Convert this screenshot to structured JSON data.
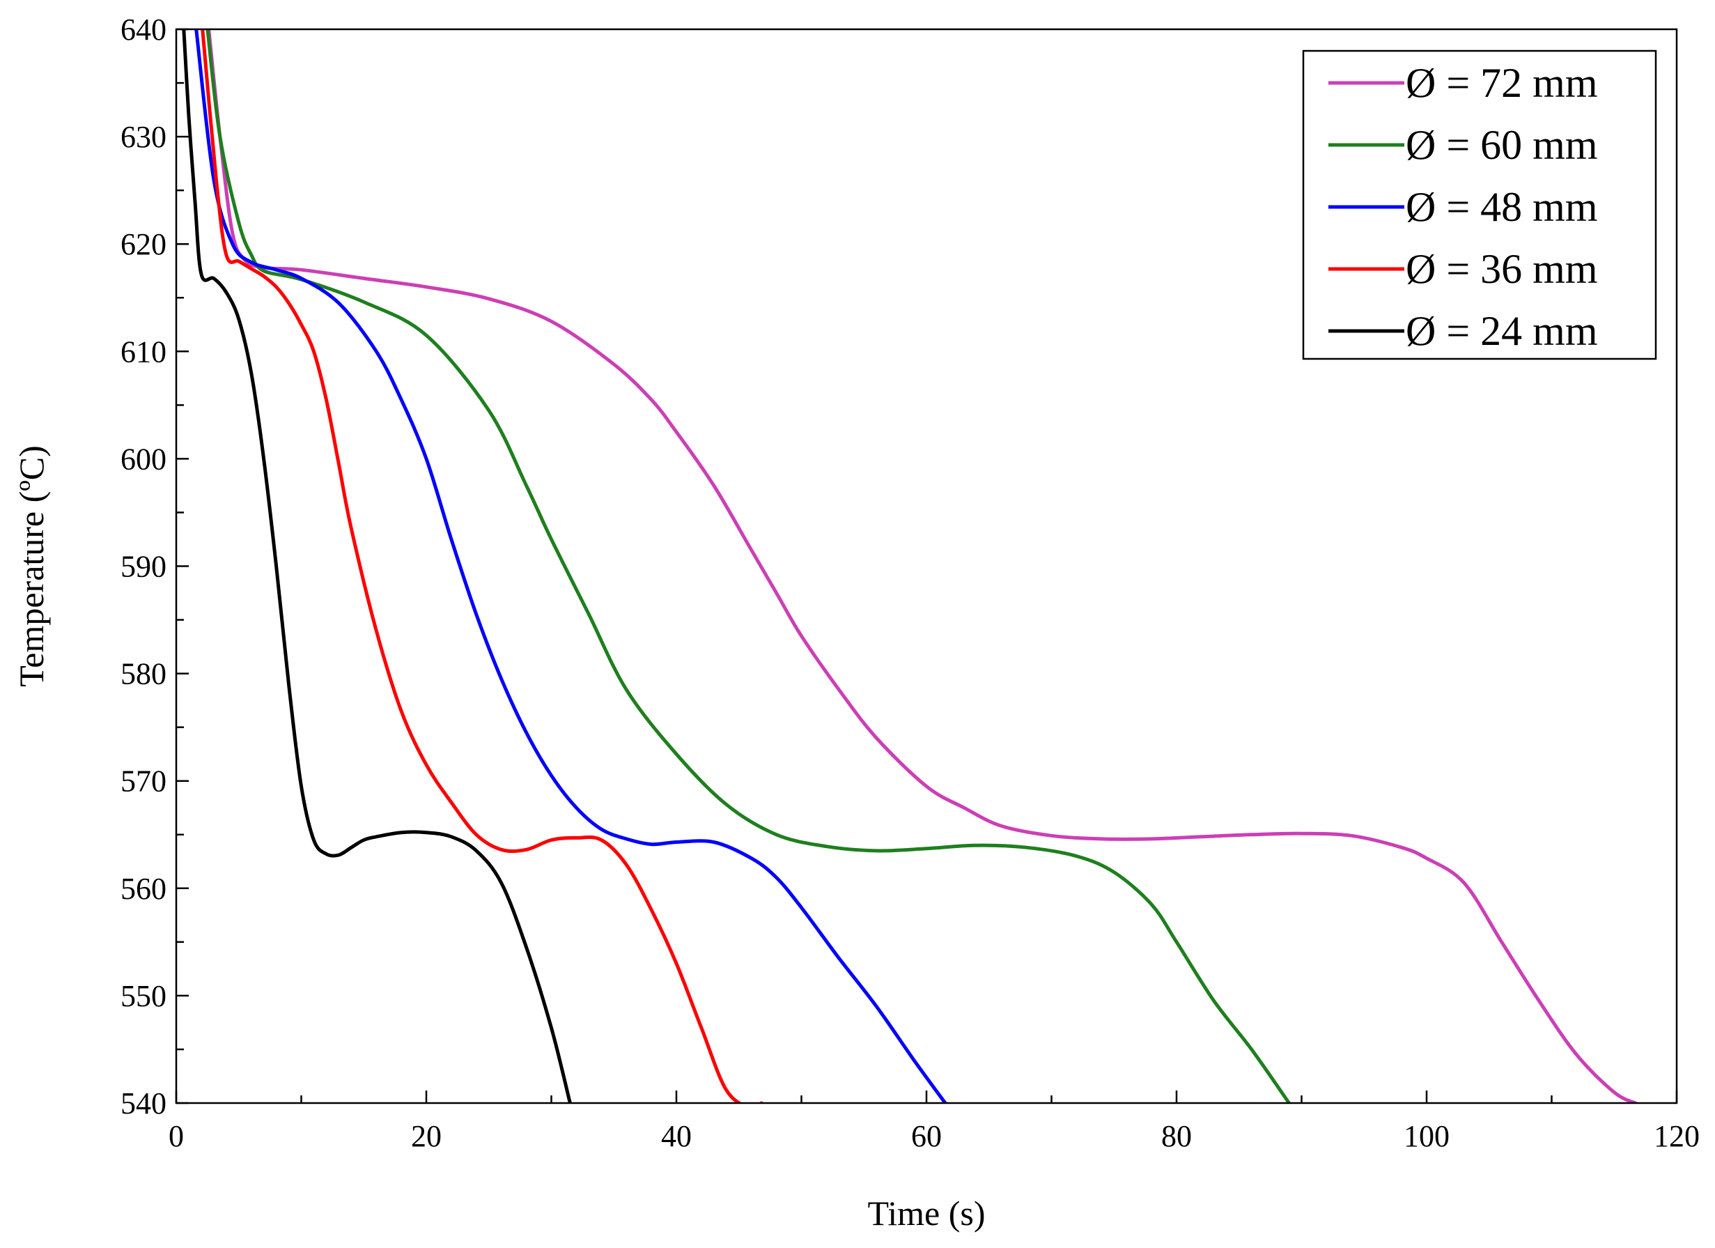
{
  "chart_data": {
    "type": "line",
    "title": "",
    "xlabel": "Time (s)",
    "ylabel": "Temperature (ºC)",
    "xlim": [
      0,
      120
    ],
    "ylim": [
      540,
      640
    ],
    "xticks": [
      0,
      20,
      40,
      60,
      80,
      100,
      120
    ],
    "yticks": [
      540,
      550,
      560,
      570,
      580,
      590,
      600,
      610,
      620,
      630,
      640
    ],
    "grid": false,
    "legend_position": "top-right",
    "series": [
      {
        "name": "Ø = 72 mm",
        "color": "#CC3FB5",
        "x": [
          2.6,
          3.5,
          4.5,
          5.5,
          7,
          10,
          15,
          20,
          25,
          30,
          35,
          38,
          40,
          43,
          46,
          48,
          50,
          53,
          56,
          60,
          63,
          66,
          70,
          74,
          78,
          82,
          86,
          90,
          94,
          98,
          100,
          103,
          106,
          109,
          112,
          115,
          116.7
        ],
        "y": [
          640,
          630,
          621,
          618.5,
          617.8,
          617.6,
          616.8,
          616,
          614.9,
          612.8,
          608.8,
          605.5,
          602.5,
          597.5,
          591.5,
          587.5,
          583.5,
          578.5,
          574,
          569.5,
          567.5,
          565.8,
          564.9,
          564.6,
          564.6,
          564.8,
          565,
          565.1,
          564.9,
          563.8,
          562.8,
          560.5,
          555,
          549.5,
          544.5,
          541,
          540
        ]
      },
      {
        "name": "Ø = 60 mm",
        "color": "#1E7F1E",
        "x": [
          2.5,
          3.5,
          5,
          6,
          7,
          10,
          15,
          20,
          25,
          28,
          30,
          33,
          36,
          40,
          44,
          48,
          52,
          56,
          60,
          64,
          68,
          72,
          75,
          78,
          80,
          83,
          86,
          89
        ],
        "y": [
          640,
          630,
          622,
          619,
          617.5,
          616.7,
          614.6,
          611.5,
          604.5,
          597.5,
          592.5,
          585.5,
          578.5,
          572.5,
          567.8,
          565,
          563.9,
          563.5,
          563.7,
          564,
          563.8,
          563,
          561.5,
          558.5,
          555,
          549.5,
          545,
          540
        ]
      },
      {
        "name": "Ø = 48 mm",
        "color": "#0000FF",
        "x": [
          1.6,
          3,
          4.5,
          6,
          8,
          10,
          13,
          16,
          18,
          20,
          22,
          24,
          26,
          28,
          30,
          32,
          34,
          36,
          38,
          40,
          43,
          46,
          48,
          50,
          53,
          56,
          59,
          61.5
        ],
        "y": [
          640,
          626,
          620,
          618.3,
          617.6,
          616.8,
          614.5,
          610,
          605.5,
          600,
          592.5,
          585.5,
          579.5,
          574.5,
          570.5,
          567.5,
          565.5,
          564.6,
          564.1,
          564.3,
          564.3,
          562.8,
          561,
          558.2,
          553.5,
          549,
          544,
          540
        ]
      },
      {
        "name": "Ø = 36 mm",
        "color": "#FF0000",
        "x": [
          2.1,
          3.2,
          4,
          5,
          6,
          7,
          8,
          9,
          10,
          11,
          12,
          13,
          14,
          16,
          18,
          20,
          22,
          24,
          26,
          28,
          30,
          32,
          34,
          36,
          38,
          40,
          42,
          44,
          46,
          46.8
        ],
        "y": [
          640,
          626,
          619,
          618.4,
          617.7,
          617,
          616,
          614.5,
          612.5,
          610,
          605.5,
          599.5,
          593.5,
          584,
          576.5,
          571.5,
          568,
          565,
          563.6,
          563.6,
          564.5,
          564.7,
          564.5,
          562.2,
          558,
          553,
          547,
          541.2,
          539.5,
          540
        ]
      },
      {
        "name": "Ø = 24 mm",
        "color": "#000000",
        "x": [
          0.6,
          1,
          1.5,
          2,
          3,
          4,
          5,
          6,
          7,
          8,
          9,
          10,
          11,
          12,
          13,
          14,
          15,
          16,
          18,
          20,
          22,
          24,
          26,
          28,
          30,
          31.5
        ],
        "y": [
          640,
          632,
          624,
          617.2,
          616.8,
          615.5,
          613,
          608,
          600,
          590,
          579,
          569.5,
          564.5,
          563.2,
          563.1,
          563.8,
          564.5,
          564.8,
          565.2,
          565.2,
          564.8,
          563.5,
          560.5,
          554.5,
          547,
          540
        ]
      }
    ]
  }
}
